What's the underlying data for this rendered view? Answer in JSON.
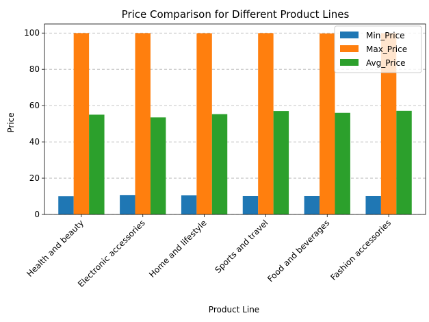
{
  "chart_data": {
    "type": "bar",
    "title": "Price Comparison for Different Product Lines",
    "xlabel": "Product Line",
    "ylabel": "Price",
    "categories": [
      "Health and beauty",
      "Electronic accessories",
      "Home and lifestyle",
      "Sports and travel",
      "Food and beverages",
      "Fashion accessories"
    ],
    "series": [
      {
        "name": "Min_Price",
        "color": "#1f77b4",
        "values": [
          10.1,
          10.6,
          10.5,
          10.2,
          10.2,
          10.2
        ]
      },
      {
        "name": "Max_Price",
        "color": "#ff7f0e",
        "values": [
          99.96,
          99.95,
          99.9,
          99.96,
          99.8,
          99.9
        ]
      },
      {
        "name": "Avg_Price",
        "color": "#2ca02c",
        "values": [
          55.0,
          53.5,
          55.3,
          57.0,
          56.0,
          57.1
        ]
      }
    ],
    "ylim": [
      0,
      105
    ],
    "yticks": [
      0,
      20,
      40,
      60,
      80,
      100
    ],
    "grid": "y-dashed",
    "legend": "upper right"
  }
}
